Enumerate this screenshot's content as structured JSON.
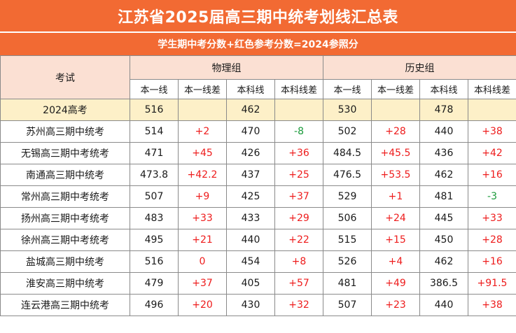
{
  "title": "江苏省2025届高三期中统考划线汇总表",
  "subtitle": "学生期中考分数+红色参考分数=2024参照分",
  "header": {
    "exam_col": "考试",
    "group_physics": "物理组",
    "group_history": "历史组",
    "sub_labels": [
      "本一线",
      "本一线差",
      "本科线",
      "本科线差",
      "本一线",
      "本一线差",
      "本科线",
      "本科线差"
    ]
  },
  "reference": {
    "name": "2024高考",
    "values": [
      "516",
      "",
      "462",
      "",
      "530",
      "",
      "478",
      ""
    ]
  },
  "rows": [
    {
      "name": "苏州高三期中统考",
      "values": [
        "514",
        "+2",
        "470",
        "-8",
        "502",
        "+28",
        "440",
        "+38"
      ]
    },
    {
      "name": "无锡高三期中考统考",
      "values": [
        "471",
        "+45",
        "426",
        "+36",
        "484.5",
        "+45.5",
        "436",
        "+42"
      ]
    },
    {
      "name": "南通高三期中统考",
      "values": [
        "473.8",
        "+42.2",
        "437",
        "+25",
        "476.5",
        "+53.5",
        "462",
        "+16"
      ]
    },
    {
      "name": "常州高三期中考统考",
      "values": [
        "507",
        "+9",
        "425",
        "+37",
        "529",
        "+1",
        "481",
        "-3"
      ]
    },
    {
      "name": "扬州高三期中考统考",
      "values": [
        "483",
        "+33",
        "433",
        "+29",
        "506",
        "+24",
        "445",
        "+33"
      ]
    },
    {
      "name": "徐州高三期中考统考",
      "values": [
        "495",
        "+21",
        "440",
        "+22",
        "515",
        "+15",
        "450",
        "+28"
      ]
    },
    {
      "name": "盐城高三期中统考",
      "values": [
        "516",
        "0",
        "454",
        "+8",
        "526",
        "+4",
        "462",
        "+16"
      ]
    },
    {
      "name": "淮安高三期中统考",
      "values": [
        "479",
        "+37",
        "405",
        "+57",
        "481",
        "+49",
        "386.5",
        "+91.5"
      ]
    },
    {
      "name": "连云港高三期中统考",
      "values": [
        "496",
        "+20",
        "430",
        "+32",
        "507",
        "+23",
        "440",
        "+38"
      ]
    }
  ],
  "colors": {
    "title_bg": "#f26a33",
    "header_bg": "#fbe0d3",
    "reference_bg": "#fdf0c8",
    "positive_text": "#ee1c1c",
    "negative_text": "#1a9a3a"
  }
}
